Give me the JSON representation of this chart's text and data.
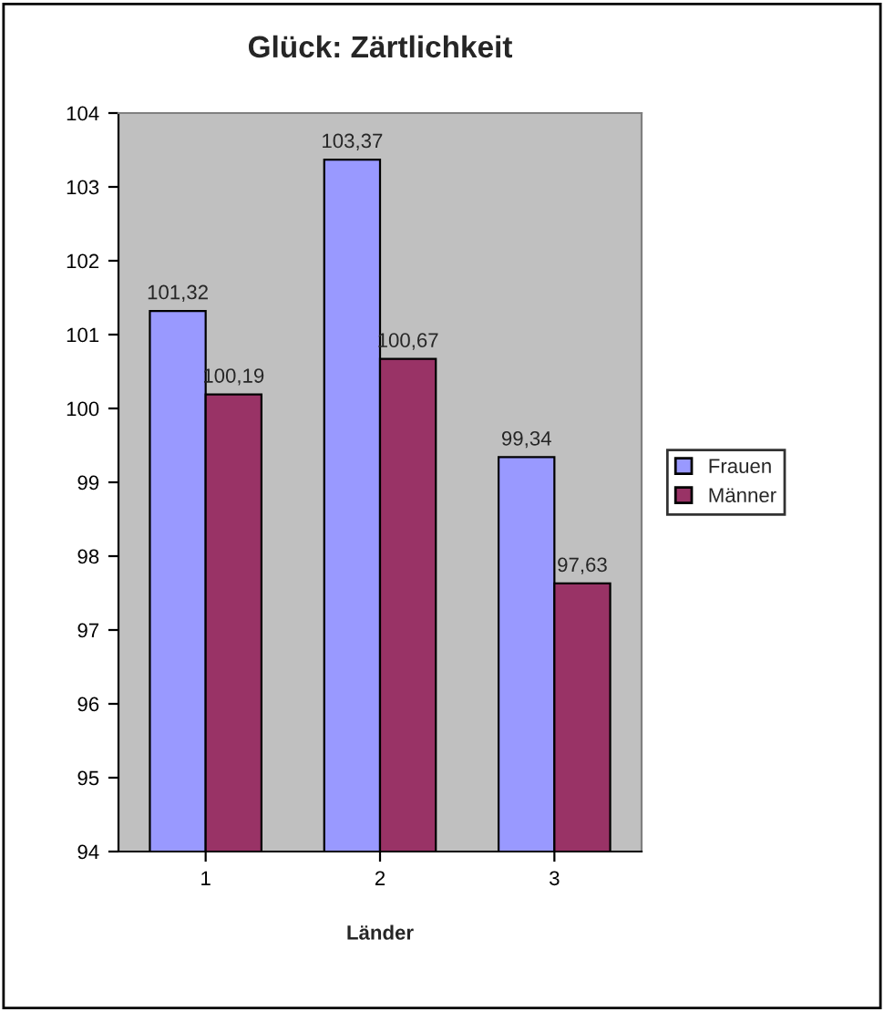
{
  "chart_data": {
    "type": "bar",
    "title": "Glück: Zärtlichkeit",
    "xlabel": "Länder",
    "categories": [
      "1",
      "2",
      "3"
    ],
    "series": [
      {
        "name": "Frauen",
        "color": "#9999ff",
        "values": [
          101.32,
          103.37,
          99.34
        ],
        "value_labels": [
          "101,32",
          "103,37",
          "99,34"
        ]
      },
      {
        "name": "Männer",
        "color": "#993366",
        "values": [
          100.19,
          100.67,
          97.63
        ],
        "value_labels": [
          "100,19",
          "100,67",
          "97,63"
        ]
      }
    ],
    "ylim": [
      94,
      104
    ],
    "yticks": [
      94,
      95,
      96,
      97,
      98,
      99,
      100,
      101,
      102,
      103,
      104
    ],
    "grid": false,
    "legend": "right"
  }
}
